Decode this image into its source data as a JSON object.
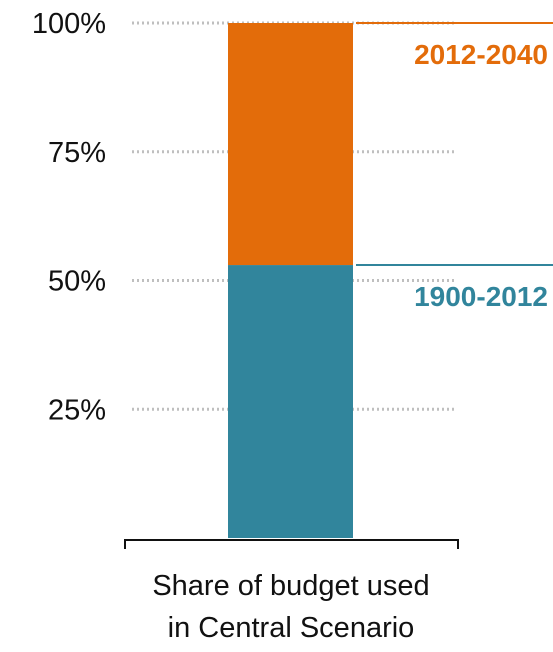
{
  "chart_data": {
    "type": "bar",
    "stacked": true,
    "categories": [
      "Share of budget used in Central Scenario"
    ],
    "xlabel_lines": [
      "Share of budget used",
      "in Central Scenario"
    ],
    "ylim": [
      0,
      100
    ],
    "yticks": [
      25,
      50,
      75,
      100
    ],
    "ytick_labels": [
      "25%",
      "50%",
      "75%",
      "100%"
    ],
    "grid": "dotted horizontal",
    "series": [
      {
        "name": "1900-2012",
        "values": [
          53
        ],
        "color": "#31859c"
      },
      {
        "name": "2012-2040",
        "values": [
          47
        ],
        "color": "#e36c0a"
      }
    ]
  }
}
